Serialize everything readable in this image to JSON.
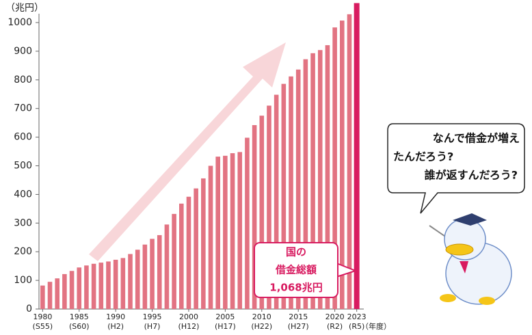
{
  "chart_data": {
    "type": "bar",
    "y_unit_label": "（兆円）",
    "x_unit_label": "（年度）",
    "categories": [
      "1980",
      null,
      null,
      null,
      null,
      "1985",
      null,
      null,
      null,
      null,
      "1990",
      null,
      null,
      null,
      null,
      "1995",
      null,
      null,
      null,
      null,
      "2000",
      null,
      null,
      null,
      null,
      "2005",
      null,
      null,
      null,
      null,
      "2010",
      null,
      null,
      null,
      null,
      "2015",
      null,
      null,
      null,
      null,
      "2020",
      null,
      null,
      "2023"
    ],
    "category_sublabels": [
      "(S55)",
      null,
      null,
      null,
      null,
      "(S60)",
      null,
      null,
      null,
      null,
      "(H2)",
      null,
      null,
      null,
      null,
      "(H7)",
      null,
      null,
      null,
      null,
      "(H12)",
      null,
      null,
      null,
      null,
      "(H17)",
      null,
      null,
      null,
      null,
      "(H22)",
      null,
      null,
      null,
      null,
      "(H27)",
      null,
      null,
      null,
      null,
      "(R2)",
      null,
      null,
      "(R5)"
    ],
    "values": [
      82,
      95,
      107,
      122,
      133,
      145,
      152,
      158,
      162,
      166,
      172,
      178,
      192,
      207,
      225,
      245,
      258,
      295,
      332,
      368,
      392,
      421,
      456,
      500,
      532,
      535,
      544,
      548,
      598,
      642,
      675,
      710,
      748,
      786,
      812,
      836,
      872,
      893,
      904,
      921,
      983,
      1007,
      1029,
      1068
    ],
    "color": "#e27382",
    "last_bar_color": "#d81b60",
    "ylim": [
      0,
      1040
    ],
    "yticks": [
      0,
      100,
      200,
      300,
      400,
      500,
      600,
      700,
      800,
      900,
      1000
    ],
    "callout": [
      "国の",
      "借金総額",
      "1,068兆円"
    ],
    "speech_bubble": [
      "なんで借金が増え",
      "たんだろう?",
      "誰が返すんだろう?"
    ]
  }
}
